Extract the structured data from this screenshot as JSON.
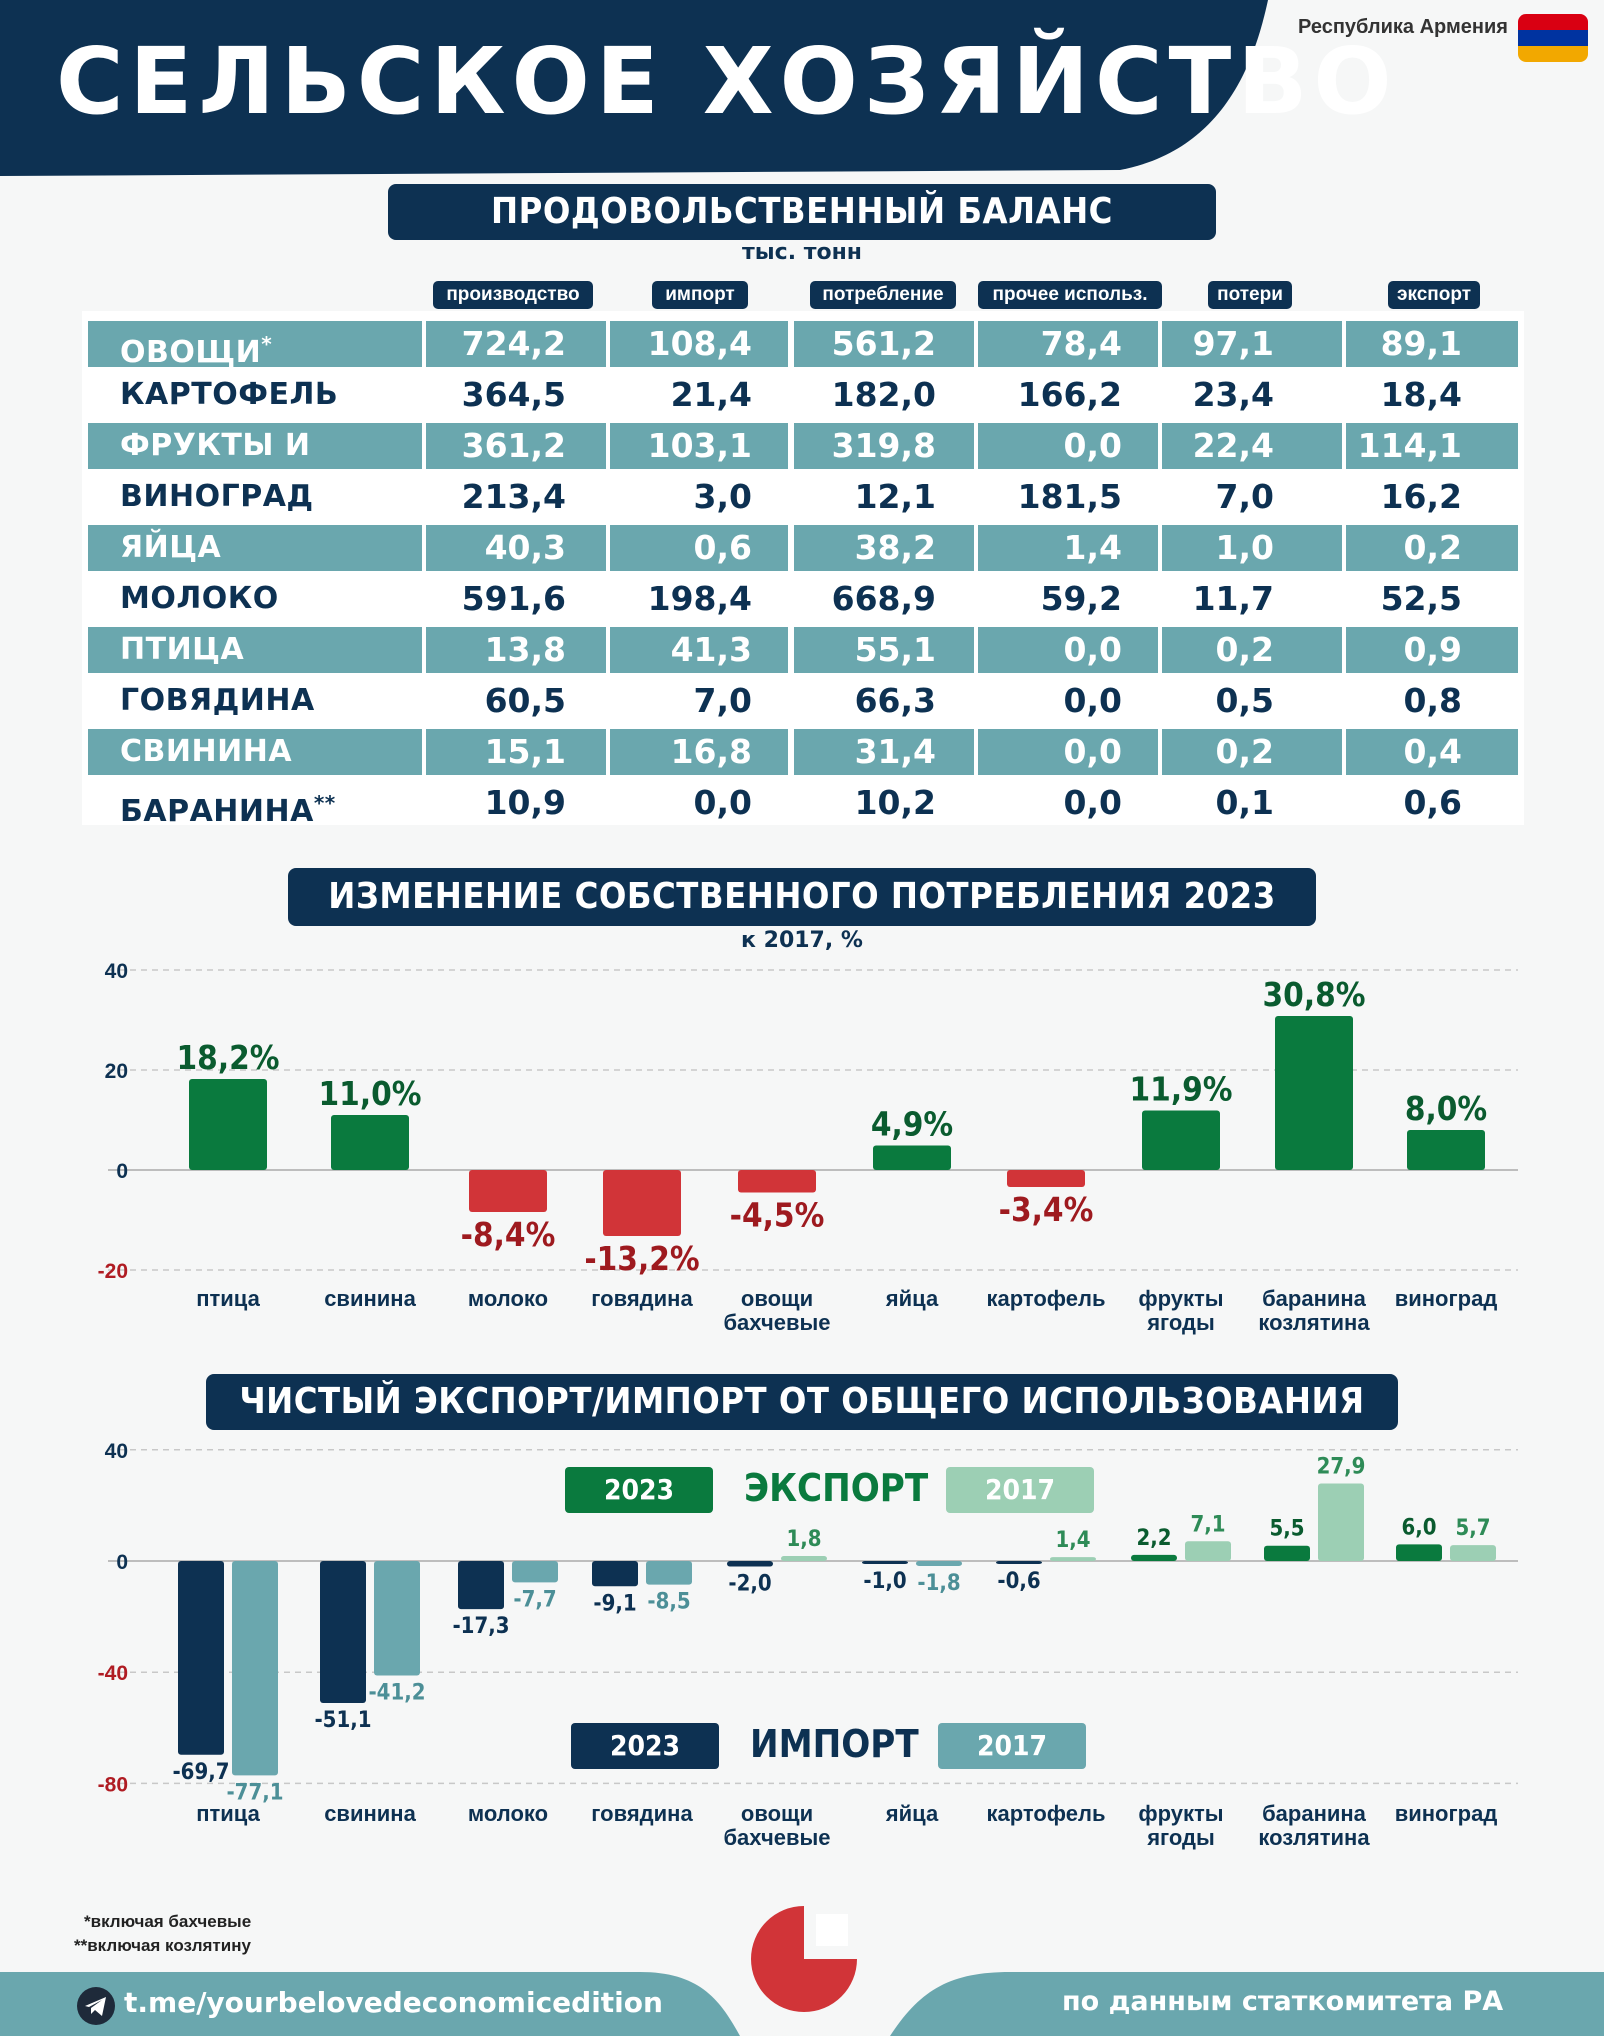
{
  "header": {
    "title": "СЕЛЬСКОЕ ХОЗЯЙСТВО",
    "country": "Республика Армения",
    "flag_colors": [
      "#d90012",
      "#0033a0",
      "#f2a800"
    ],
    "brand_colors": {
      "navy": "#0d3152",
      "teal": "#6aa7ae",
      "green": "#0a7a3e",
      "red": "#d13438"
    }
  },
  "balance": {
    "title": "ПРОДОВОЛЬСТВЕННЫЙ БАЛАНС",
    "unit": "тыс. тонн",
    "columns": [
      "производство",
      "импорт",
      "потребление",
      "прочее использ.",
      "потери",
      "экспорт"
    ],
    "rows": [
      {
        "name": "ОВОЩИ",
        "mark": "*",
        "values": [
          "724,2",
          "108,4",
          "561,2",
          "78,4",
          "97,1",
          "89,1"
        ]
      },
      {
        "name": "КАРТОФЕЛЬ",
        "mark": "",
        "values": [
          "364,5",
          "21,4",
          "182,0",
          "166,2",
          "23,4",
          "18,4"
        ]
      },
      {
        "name": "ФРУКТЫ И ЯГОДЫ",
        "mark": "",
        "values": [
          "361,2",
          "103,1",
          "319,8",
          "0,0",
          "22,4",
          "114,1"
        ]
      },
      {
        "name": "ВИНОГРАД",
        "mark": "",
        "values": [
          "213,4",
          "3,0",
          "12,1",
          "181,5",
          "7,0",
          "16,2"
        ]
      },
      {
        "name": "ЯЙЦА",
        "mark": "",
        "values": [
          "40,3",
          "0,6",
          "38,2",
          "1,4",
          "1,0",
          "0,2"
        ]
      },
      {
        "name": "МОЛОКО",
        "mark": "",
        "values": [
          "591,6",
          "198,4",
          "668,9",
          "59,2",
          "11,7",
          "52,5"
        ]
      },
      {
        "name": "ПТИЦА",
        "mark": "",
        "values": [
          "13,8",
          "41,3",
          "55,1",
          "0,0",
          "0,2",
          "0,9"
        ]
      },
      {
        "name": "ГОВЯДИНА",
        "mark": "",
        "values": [
          "60,5",
          "7,0",
          "66,3",
          "0,0",
          "0,5",
          "0,8"
        ]
      },
      {
        "name": "СВИНИНА",
        "mark": "",
        "values": [
          "15,1",
          "16,8",
          "31,4",
          "0,0",
          "0,2",
          "0,4"
        ]
      },
      {
        "name": "БАРАНИНА",
        "mark": "**",
        "values": [
          "10,9",
          "0,0",
          "10,2",
          "0,0",
          "0,1",
          "0,6"
        ]
      }
    ]
  },
  "consumption": {
    "title": "ИЗМЕНЕНИЕ СОБСТВЕННОГО ПОТРЕБЛЕНИЯ 2023",
    "subtitle": "к 2017, %"
  },
  "trade": {
    "title": "ЧИСТЫЙ ЭКСПОРТ/ИМПОРТ ОТ ОБЩЕГО ИСПОЛЬЗОВАНИЯ",
    "export_label": "ЭКСПОРТ",
    "import_label": "ИМПОРТ",
    "year_2023": "2023",
    "year_2017": "2017"
  },
  "chart_data": [
    {
      "type": "bar",
      "categories": [
        "птица",
        "свинина",
        "молоко",
        "говядина",
        "овощи\nбахчевые",
        "яйца",
        "картофель",
        "фрукты\nягоды",
        "баранина\nкозлятина",
        "виноград"
      ],
      "values": [
        18.2,
        11.0,
        -8.4,
        -13.2,
        -4.5,
        4.9,
        -3.4,
        11.9,
        30.8,
        8.0
      ],
      "data_labels": [
        "18,2%",
        "11,0%",
        "-8,4%",
        "-13,2%",
        "-4,5%",
        "4,9%",
        "-3,4%",
        "11,9%",
        "30,8%",
        "8,0%"
      ],
      "title": "ИЗМЕНЕНИЕ СОБСТВЕННОГО ПОТРЕБЛЕНИЯ 2023",
      "subtitle": "к 2017, %",
      "yticks": [
        40,
        20,
        0,
        -20
      ],
      "ylim": [
        -20,
        40
      ],
      "colors": {
        "positive": "#0a7a3e",
        "negative": "#d13438"
      },
      "grid": true
    },
    {
      "type": "bar",
      "categories": [
        "птица",
        "свинина",
        "молоко",
        "говядина",
        "овощи\nбахчевые",
        "яйца",
        "картофель",
        "фрукты\nягоды",
        "баранина\nкозлятина",
        "виноград"
      ],
      "series": [
        {
          "name": "2023",
          "values": [
            -69.7,
            -51.1,
            -17.3,
            -9.1,
            -2.0,
            -1.0,
            -0.6,
            2.2,
            5.5,
            6.0
          ],
          "labels": [
            "-69,7",
            "-51,1",
            "-17,3",
            "-9,1",
            "-2,0",
            "-1,0",
            "-0,6",
            "2,2",
            "5,5",
            "6,0"
          ]
        },
        {
          "name": "2017",
          "values": [
            -77.1,
            -41.2,
            -7.7,
            -8.5,
            1.8,
            -1.8,
            1.4,
            7.1,
            27.9,
            5.7
          ],
          "labels": [
            "-77,1",
            "-41,2",
            "-7,7",
            "-8,5",
            "1,8",
            "-1,8",
            "1,4",
            "7,1",
            "27,9",
            "5,7"
          ]
        }
      ],
      "title": "ЧИСТЫЙ ЭКСПОРТ/ИМПОРТ ОТ ОБЩЕГО ИСПОЛЬЗОВАНИЯ",
      "yticks": [
        40,
        0,
        -40,
        -80
      ],
      "ylim": [
        -80,
        40
      ],
      "colors": {
        "export_2023": "#0a7a3e",
        "export_2017": "#9ccfb4",
        "import_2023": "#0d3152",
        "import_2017": "#6aa7ae"
      },
      "grid": true
    }
  ],
  "footer": {
    "note1": "*включая бахчевые",
    "note2": "**включая козлятину",
    "link": "t.me/yourbelovedeconomicedition",
    "source": "по данным статкомитета РА"
  }
}
